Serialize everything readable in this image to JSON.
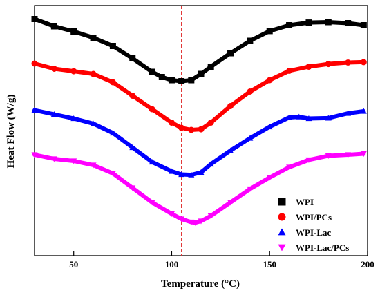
{
  "chart_data": {
    "type": "line",
    "xlabel": "Temperature (°C)",
    "ylabel": "Heat Flow (W/g)",
    "xlim": [
      30,
      200
    ],
    "ylim": [
      0,
      100
    ],
    "x_ticks": [
      50,
      100,
      150,
      200
    ],
    "y_ticks": [],
    "grid": false,
    "legend_position": "bottom-right",
    "reference_line": {
      "x": 105,
      "color": "#e03030",
      "style": "dashed"
    },
    "series": [
      {
        "name": "WPI",
        "color": "#000000",
        "marker": "square",
        "x": [
          30,
          40,
          50,
          60,
          70,
          80,
          90,
          95,
          100,
          105,
          110,
          115,
          120,
          130,
          140,
          150,
          160,
          170,
          180,
          190,
          198
        ],
        "y": [
          97.5,
          94,
          91.5,
          88.5,
          84.5,
          78.5,
          72,
          69.5,
          68,
          67.5,
          68,
          71,
          74.5,
          81,
          87,
          91.7,
          94.5,
          95.8,
          96,
          95.5,
          94.5
        ]
      },
      {
        "name": "WPI/PCs",
        "color": "#ff0000",
        "marker": "circle",
        "x": [
          30,
          40,
          50,
          60,
          70,
          80,
          90,
          100,
          105,
          110,
          115,
          120,
          130,
          140,
          150,
          160,
          170,
          180,
          190,
          198
        ],
        "y": [
          76,
          73.5,
          72.3,
          71,
          67,
          60.5,
          54,
          47.5,
          45,
          44,
          44.3,
          47.5,
          55.5,
          62.5,
          68,
          72.5,
          74.5,
          75.8,
          76.5,
          76.7
        ]
      },
      {
        "name": "WPI-Lac",
        "color": "#0000ff",
        "marker": "triangle-up",
        "x": [
          30,
          40,
          50,
          60,
          70,
          80,
          90,
          100,
          105,
          110,
          115,
          120,
          130,
          140,
          150,
          160,
          165,
          170,
          180,
          190,
          198
        ],
        "y": [
          53.5,
          51.5,
          49.5,
          47,
          42.5,
          35.5,
          28.5,
          24,
          22.5,
          22.3,
          23.5,
          27.5,
          34,
          40,
          45.5,
          50,
          50.3,
          49.5,
          49.7,
          52,
          53
        ]
      },
      {
        "name": "WPI-Lac/PCs",
        "color": "#ff00ff",
        "marker": "triangle-down",
        "x": [
          30,
          40,
          50,
          60,
          70,
          80,
          90,
          100,
          105,
          110,
          112,
          115,
          120,
          130,
          140,
          150,
          160,
          170,
          180,
          190,
          198
        ],
        "y": [
          32,
          30,
          29,
          27,
          23,
          16,
          9,
          3.5,
          1,
          -0.5,
          -0.8,
          0,
          2.5,
          9,
          15.5,
          21,
          26,
          29.5,
          31.5,
          32,
          32.5
        ]
      }
    ]
  }
}
